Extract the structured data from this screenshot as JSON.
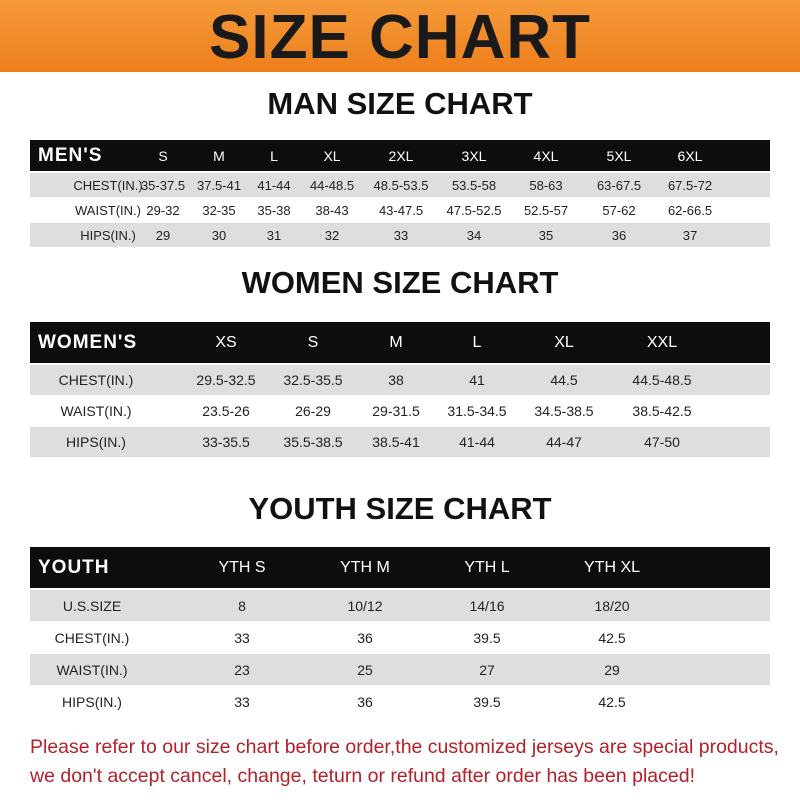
{
  "banner": {
    "title": "SIZE CHART",
    "color": "#f08a24"
  },
  "men": {
    "title": "MAN SIZE CHART",
    "header": [
      "MEN'S",
      "S",
      "M",
      "L",
      "XL",
      "2XL",
      "3XL",
      "4XL",
      "5XL",
      "6XL"
    ],
    "rows": [
      [
        "CHEST(IN.)",
        "35-37.5",
        "37.5-41",
        "41-44",
        "44-48.5",
        "48.5-53.5",
        "53.5-58",
        "58-63",
        "63-67.5",
        "67.5-72"
      ],
      [
        "WAIST(IN.)",
        "29-32",
        "32-35",
        "35-38",
        "38-43",
        "43-47.5",
        "47.5-52.5",
        "52.5-57",
        "57-62",
        "62-66.5"
      ],
      [
        "HIPS(IN.)",
        "29",
        "30",
        "31",
        "32",
        "33",
        "34",
        "35",
        "36",
        "37"
      ]
    ]
  },
  "women": {
    "title": "WOMEN SIZE CHART",
    "header": [
      "WOMEN'S",
      "XS",
      "S",
      "M",
      "L",
      "XL",
      "XXL"
    ],
    "rows": [
      [
        "CHEST(IN.)",
        "29.5-32.5",
        "32.5-35.5",
        "38",
        "41",
        "44.5",
        "44.5-48.5"
      ],
      [
        "WAIST(IN.)",
        "23.5-26",
        "26-29",
        "29-31.5",
        "31.5-34.5",
        "34.5-38.5",
        "38.5-42.5"
      ],
      [
        "HIPS(IN.)",
        "33-35.5",
        "35.5-38.5",
        "38.5-41",
        "41-44",
        "44-47",
        "47-50"
      ]
    ]
  },
  "youth": {
    "title": "YOUTH SIZE CHART",
    "header": [
      "YOUTH",
      "YTH S",
      "YTH M",
      "YTH L",
      "YTH XL"
    ],
    "rows": [
      [
        "U.S.SIZE",
        "8",
        "10/12",
        "14/16",
        "18/20"
      ],
      [
        "CHEST(IN.)",
        "33",
        "36",
        "39.5",
        "42.5"
      ],
      [
        "WAIST(IN.)",
        "23",
        "25",
        "27",
        "29"
      ],
      [
        "HIPS(IN.)",
        "33",
        "36",
        "39.5",
        "42.5"
      ]
    ]
  },
  "note": {
    "line1": "Please refer to our size chart before order,the customized jerseys are special products,",
    "line2": "we don't accept cancel, change, teturn or refund after order has been placed!",
    "color": "#b3202a"
  }
}
